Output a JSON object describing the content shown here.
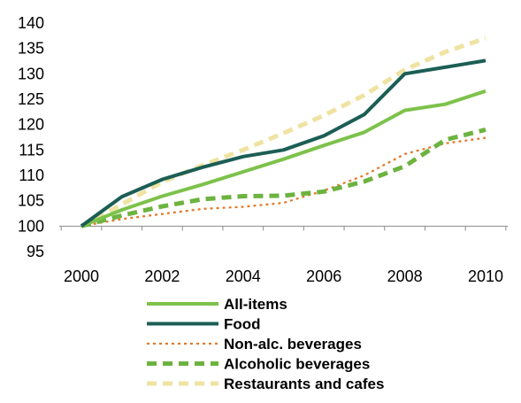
{
  "chart_data": {
    "type": "line",
    "x": [
      2000,
      2001,
      2002,
      2003,
      2004,
      2005,
      2006,
      2007,
      2008,
      2009,
      2010
    ],
    "xlim": [
      2000,
      2010
    ],
    "x_ticks": [
      2000,
      2002,
      2004,
      2006,
      2008,
      2010
    ],
    "ylim": [
      95,
      140
    ],
    "y_ticks": [
      95,
      100,
      105,
      110,
      115,
      120,
      125,
      130,
      135,
      140
    ],
    "grid": false,
    "legend_position": "bottom",
    "series": [
      {
        "name": "All-items",
        "color": "#7dc24b",
        "style": "solid-thick",
        "values": [
          100,
          103.2,
          105.9,
          108.2,
          110.7,
          113.2,
          115.9,
          118.5,
          122.8,
          124.0,
          126.6
        ]
      },
      {
        "name": "Food",
        "color": "#1b5e55",
        "style": "solid-thick",
        "values": [
          100,
          105.8,
          109.2,
          111.6,
          113.7,
          115.0,
          117.8,
          122.0,
          130.0,
          131.3,
          132.6
        ]
      },
      {
        "name": "Non-alc. beverages",
        "color": "#e07a2a",
        "style": "dotted-thin",
        "values": [
          100,
          101.4,
          102.4,
          103.4,
          103.8,
          104.6,
          107.0,
          110.0,
          114.2,
          116.3,
          117.4
        ]
      },
      {
        "name": "Alcoholic beverages",
        "color": "#6db33f",
        "style": "dashed-thick",
        "values": [
          100,
          102.1,
          103.9,
          105.3,
          105.9,
          106.0,
          106.8,
          108.8,
          111.8,
          117.0,
          119.0
        ]
      },
      {
        "name": "Restaurants and cafes",
        "color": "#efe3a2",
        "style": "dashed-thick",
        "values": [
          100,
          104.3,
          108.7,
          112.0,
          115.0,
          118.3,
          121.8,
          125.8,
          130.8,
          134.3,
          137.0
        ]
      }
    ]
  }
}
